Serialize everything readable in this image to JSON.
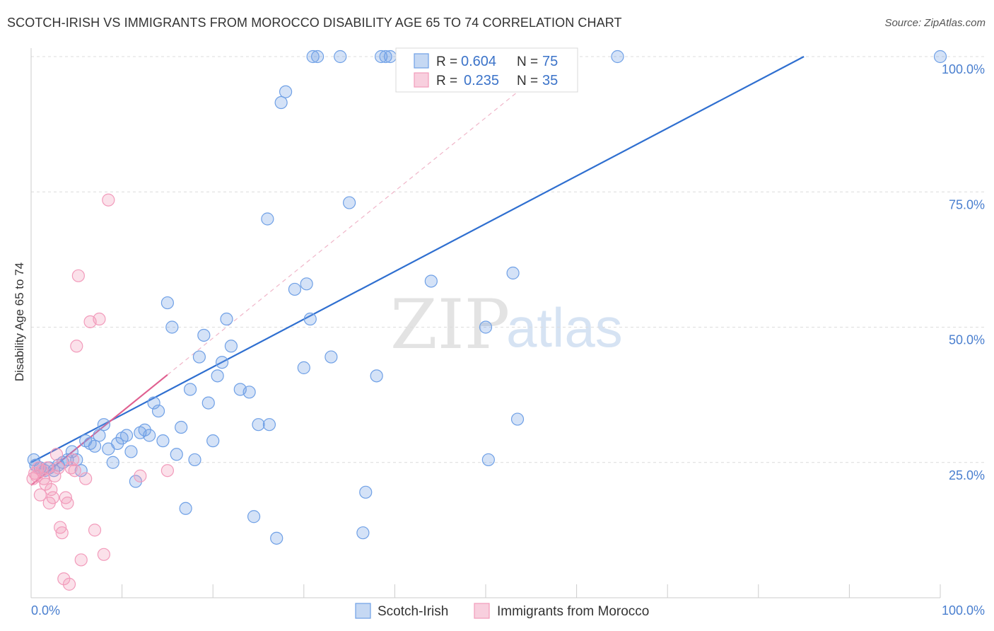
{
  "title": "SCOTCH-IRISH VS IMMIGRANTS FROM MOROCCO DISABILITY AGE 65 TO 74 CORRELATION CHART",
  "source": "Source: ZipAtlas.com",
  "watermark": {
    "zip": "ZIP",
    "atlas": "atlas"
  },
  "chart_data": {
    "type": "scatter",
    "xlabel": "",
    "ylabel": "Disability Age 65 to 74",
    "xlim": [
      0,
      100
    ],
    "ylim": [
      0,
      100
    ],
    "x_tick_labels": {
      "left": "0.0%",
      "right": "100.0%"
    },
    "y_ticks": [
      {
        "value": 100,
        "label": "100.0%"
      },
      {
        "value": 75,
        "label": "75.0%"
      },
      {
        "value": 50,
        "label": "50.0%"
      },
      {
        "value": 25,
        "label": "25.0%"
      }
    ],
    "legend": {
      "placement": "top-center",
      "entries": [
        {
          "r_label": "R =",
          "r": "0.604",
          "n_label": "N =",
          "n": "75"
        },
        {
          "r_label": "R =",
          "r": "0.235",
          "n_label": "N =",
          "n": "35"
        }
      ]
    },
    "series": [
      {
        "name": "Scotch-Irish",
        "color": "#6fa0e6",
        "line_color": "#2f6fd0",
        "trend": {
          "x0": 0,
          "y0": 25.0,
          "x1": 85,
          "y1": 100
        },
        "points": [
          [
            0.3,
            25.5
          ],
          [
            0.5,
            24.5
          ],
          [
            1.0,
            24.0
          ],
          [
            1.5,
            23.5
          ],
          [
            2.0,
            24.0
          ],
          [
            2.5,
            23.5
          ],
          [
            3.0,
            24.5
          ],
          [
            3.5,
            25.0
          ],
          [
            4.0,
            25.5
          ],
          [
            4.5,
            27.0
          ],
          [
            5.0,
            25.5
          ],
          [
            5.5,
            23.5
          ],
          [
            6.0,
            29.0
          ],
          [
            6.5,
            28.5
          ],
          [
            7.0,
            28.0
          ],
          [
            7.5,
            30.0
          ],
          [
            8.0,
            32.0
          ],
          [
            8.5,
            27.5
          ],
          [
            9.0,
            25.0
          ],
          [
            9.5,
            28.5
          ],
          [
            10.0,
            29.5
          ],
          [
            10.5,
            30.0
          ],
          [
            11.0,
            27.0
          ],
          [
            11.5,
            21.5
          ],
          [
            12.0,
            30.5
          ],
          [
            12.5,
            31.0
          ],
          [
            13.0,
            30.0
          ],
          [
            13.5,
            36.0
          ],
          [
            14.0,
            34.5
          ],
          [
            14.5,
            29.0
          ],
          [
            15.0,
            54.5
          ],
          [
            15.5,
            50.0
          ],
          [
            16.0,
            26.5
          ],
          [
            16.5,
            31.5
          ],
          [
            17.0,
            16.5
          ],
          [
            17.5,
            38.5
          ],
          [
            18.0,
            25.5
          ],
          [
            18.5,
            44.5
          ],
          [
            19.0,
            48.5
          ],
          [
            19.5,
            36.0
          ],
          [
            20.0,
            29.0
          ],
          [
            20.5,
            41.0
          ],
          [
            21.0,
            43.5
          ],
          [
            21.5,
            51.5
          ],
          [
            22.0,
            46.5
          ],
          [
            23.0,
            38.5
          ],
          [
            24.0,
            38.0
          ],
          [
            24.5,
            15.0
          ],
          [
            25.0,
            32.0
          ],
          [
            26.0,
            70.0
          ],
          [
            26.2,
            32.0
          ],
          [
            27.0,
            11.0
          ],
          [
            27.5,
            91.5
          ],
          [
            28.0,
            93.5
          ],
          [
            29.0,
            57.0
          ],
          [
            30.0,
            42.5
          ],
          [
            30.3,
            58.0
          ],
          [
            30.7,
            51.5
          ],
          [
            31.0,
            100
          ],
          [
            31.5,
            100
          ],
          [
            33.0,
            44.5
          ],
          [
            34.0,
            100
          ],
          [
            35.0,
            73.0
          ],
          [
            36.5,
            12.0
          ],
          [
            36.8,
            19.5
          ],
          [
            38.0,
            41.0
          ],
          [
            38.5,
            100
          ],
          [
            39.0,
            100
          ],
          [
            39.5,
            100
          ],
          [
            44.0,
            58.5
          ],
          [
            50.0,
            50.0
          ],
          [
            50.3,
            25.5
          ],
          [
            53.0,
            60.0
          ],
          [
            53.5,
            33.0
          ],
          [
            64.5,
            100
          ],
          [
            100,
            100
          ]
        ]
      },
      {
        "name": "Immigrants from Morocco",
        "color": "#f29bbb",
        "line_color": "#e06090",
        "trend": {
          "x0": 0,
          "y0": 20.8,
          "x1": 15,
          "y1": 41.2
        },
        "dashed_extension": {
          "x0": 15,
          "y0": 41.2,
          "x1": 55,
          "y1": 95.5
        },
        "points": [
          [
            0.2,
            22.0
          ],
          [
            0.4,
            23.0
          ],
          [
            0.6,
            22.5
          ],
          [
            0.8,
            24.0
          ],
          [
            1.0,
            19.0
          ],
          [
            1.2,
            23.5
          ],
          [
            1.4,
            22.0
          ],
          [
            1.6,
            21.0
          ],
          [
            1.8,
            24.0
          ],
          [
            2.0,
            17.5
          ],
          [
            2.2,
            20.0
          ],
          [
            2.4,
            18.5
          ],
          [
            2.6,
            22.5
          ],
          [
            2.8,
            26.5
          ],
          [
            3.0,
            24.0
          ],
          [
            3.2,
            13.0
          ],
          [
            3.4,
            12.0
          ],
          [
            3.6,
            3.5
          ],
          [
            3.8,
            18.5
          ],
          [
            4.0,
            17.5
          ],
          [
            4.2,
            2.5
          ],
          [
            4.4,
            24.0
          ],
          [
            4.6,
            25.5
          ],
          [
            4.8,
            23.5
          ],
          [
            5.0,
            46.5
          ],
          [
            5.2,
            59.5
          ],
          [
            5.5,
            7.0
          ],
          [
            6.0,
            22.0
          ],
          [
            6.5,
            51.0
          ],
          [
            7.0,
            12.5
          ],
          [
            7.5,
            51.5
          ],
          [
            8.0,
            8.0
          ],
          [
            8.5,
            73.5
          ],
          [
            12.0,
            22.5
          ],
          [
            15.0,
            23.5
          ]
        ]
      }
    ]
  },
  "bottom_legend": [
    "Scotch-Irish",
    "Immigrants from Morocco"
  ]
}
